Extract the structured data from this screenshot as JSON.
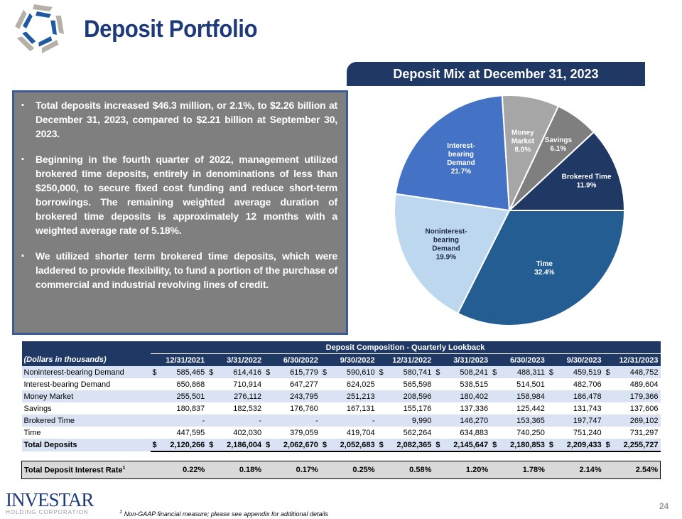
{
  "header": {
    "title": "Deposit Portfolio"
  },
  "bullets": [
    "Total deposits increased $46.3 million, or 2.1%, to $2.26 billion at December 31, 2023, compared to $2.21 billion at September 30, 2023.",
    "Beginning in the fourth quarter of 2022, management utilized brokered time deposits, entirely in denominations of less than $250,000, to secure fixed cost funding and reduce short-term borrowings. The remaining weighted average duration of brokered time deposits is approximately 12 months with a weighted average rate of 5.18%.",
    "We utilized shorter term brokered time deposits, which were laddered to provide flexibility, to fund a portion of the purchase of commercial and industrial revolving lines of credit."
  ],
  "chart_data": {
    "type": "pie",
    "title": "Deposit Mix at December 31, 2023",
    "slices": [
      {
        "label": "Time",
        "value": 32.4,
        "display": "32.4%",
        "color": "#245d91"
      },
      {
        "label": "Noninterest-bearing Demand",
        "value": 19.9,
        "display": "19.9%",
        "color": "#bdd7ee"
      },
      {
        "label": "Interest-bearing Demand",
        "value": 21.7,
        "display": "21.7%",
        "color": "#4472c4"
      },
      {
        "label": "Money Market",
        "value": 8.0,
        "display": "8.0%",
        "color": "#a6a6a6"
      },
      {
        "label": "Savings",
        "value": 6.1,
        "display": "6.1%",
        "color": "#7f7f7f"
      },
      {
        "label": "Brokered Time",
        "value": 11.9,
        "display": "11.9%",
        "color": "#1f3864"
      }
    ]
  },
  "table": {
    "title": "Deposit Composition - Quarterly Lookback",
    "unit_label": "(Dollars in thousands)",
    "columns": [
      "12/31/2021",
      "3/31/2022",
      "6/30/2022",
      "9/30/2022",
      "12/31/2022",
      "3/31/2023",
      "6/30/2023",
      "9/30/2023",
      "12/31/2023"
    ],
    "rows": [
      {
        "label": "Noninterest-bearing Demand",
        "dollar": true,
        "values": [
          "585,465",
          "614,416",
          "615,779",
          "590,610",
          "580,741",
          "508,241",
          "488,311",
          "459,519",
          "448,752"
        ]
      },
      {
        "label": "Interest-bearing Demand",
        "dollar": false,
        "values": [
          "650,868",
          "710,914",
          "647,277",
          "624,025",
          "565,598",
          "538,515",
          "514,501",
          "482,706",
          "489,604"
        ]
      },
      {
        "label": "Money Market",
        "dollar": false,
        "values": [
          "255,501",
          "276,112",
          "243,795",
          "251,213",
          "208,596",
          "180,402",
          "158,984",
          "186,478",
          "179,366"
        ]
      },
      {
        "label": "Savings",
        "dollar": false,
        "values": [
          "180,837",
          "182,532",
          "176,760",
          "167,131",
          "155,176",
          "137,336",
          "125,442",
          "131,743",
          "137,606"
        ]
      },
      {
        "label": "Brokered Time",
        "dollar": false,
        "values": [
          "-",
          "-",
          "-",
          "-",
          "9,990",
          "146,270",
          "153,365",
          "197,747",
          "269,102"
        ]
      },
      {
        "label": "Time",
        "dollar": false,
        "values": [
          "447,595",
          "402,030",
          "379,059",
          "419,704",
          "562,264",
          "634,883",
          "740,250",
          "751,240",
          "731,297"
        ]
      }
    ],
    "total": {
      "label": "Total Deposits",
      "values": [
        "2,120,266",
        "2,186,004",
        "2,062,670",
        "2,052,683",
        "2,082,365",
        "2,145,647",
        "2,180,853",
        "2,209,433",
        "2,255,727"
      ]
    },
    "rate": {
      "label": "Total Deposit Interest Rate",
      "sup": "1",
      "values": [
        "0.22%",
        "0.18%",
        "0.17%",
        "0.25%",
        "0.58%",
        "1.20%",
        "1.78%",
        "2.14%",
        "2.54%"
      ]
    },
    "currency_symbol": "$"
  },
  "footer": {
    "brand": "INVESTAR",
    "brand_sub": "HOLDING CORPORATION",
    "footnote_mark": "1",
    "footnote": "Non-GAAP financial measure; please see appendix for additional details",
    "page_number": "24"
  }
}
